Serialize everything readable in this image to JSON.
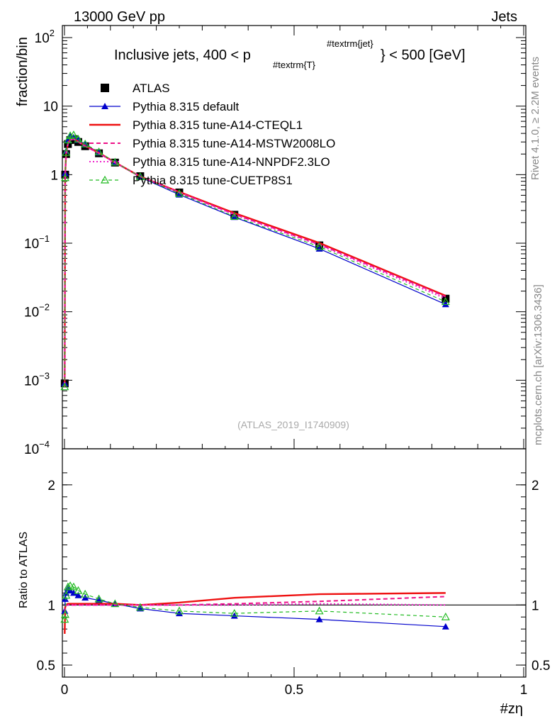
{
  "header": {
    "left": "13000 GeV pp",
    "right": "Jets"
  },
  "side_labels": {
    "rivet": "Rivet 4.1.0, ≥ 2.2M events",
    "mcplots": "mcplots.cern.ch [arXiv:1306.3436]"
  },
  "analysis_id": "(ATLAS_2019_I1740909)",
  "colors": {
    "atlas": "#000000",
    "default": "#0000cc",
    "cteql1": "#ee1111",
    "mstw": "#ee1188",
    "nnpdf": "#ee22cc",
    "cuetp8s1": "#22bb22"
  },
  "chart_data": [
    {
      "type": "line",
      "panel": "main",
      "title_main": "Inclusive jets, 400 < p",
      "title_sub": "#textrm{T}",
      "title_sup": "#textrm{jet}",
      "title_tail": "} < 500 [GeV]",
      "ylabel": "fraction/bin",
      "yscale": "log",
      "ylim": [
        0.0001,
        150
      ],
      "xlim": [
        0,
        1
      ],
      "yticks": [
        {
          "value": 100,
          "mant": "10",
          "exp": "2"
        },
        {
          "value": 10,
          "mant": "10",
          "exp": ""
        },
        {
          "value": 1,
          "mant": "1",
          "exp": ""
        },
        {
          "value": 0.1,
          "mant": "10",
          "exp": "−1"
        },
        {
          "value": 0.01,
          "mant": "10",
          "exp": "−2"
        },
        {
          "value": 0.001,
          "mant": "10",
          "exp": "−3"
        },
        {
          "value": 0.0001,
          "mant": "10",
          "exp": "−4"
        }
      ],
      "x": [
        0.0005,
        0.0015,
        0.0035,
        0.0075,
        0.0125,
        0.02,
        0.03,
        0.045,
        0.075,
        0.11,
        0.165,
        0.25,
        0.37,
        0.555,
        0.83
      ],
      "series": [
        {
          "name": "ATLAS",
          "key": "atlas",
          "style": "marker-square",
          "values": [
            0.0009,
            1.0,
            2.0,
            2.8,
            3.2,
            3.3,
            3.0,
            2.6,
            2.05,
            1.5,
            0.95,
            0.55,
            0.26,
            0.093,
            0.0155
          ]
        },
        {
          "name": "Pythia 8.315 default",
          "key": "default",
          "style": "line-triangle",
          "values": [
            0.0009,
            1.05,
            2.2,
            3.2,
            3.6,
            3.5,
            3.2,
            2.75,
            2.1,
            1.5,
            0.92,
            0.51,
            0.24,
            0.083,
            0.0128
          ]
        },
        {
          "name": "Pythia 8.315 tune-A14-CTEQL1",
          "key": "cteql1",
          "style": "line-thick",
          "values": [
            0.0008,
            1.0,
            2.0,
            2.85,
            3.25,
            3.33,
            3.05,
            2.63,
            2.08,
            1.51,
            0.94,
            0.56,
            0.275,
            0.101,
            0.0171
          ]
        },
        {
          "name": "Pythia 8.315 tune-A14-MSTW2008LO",
          "key": "mstw",
          "style": "line-dashed",
          "values": [
            0.0008,
            0.98,
            2.0,
            2.8,
            3.2,
            3.3,
            3.0,
            2.6,
            2.05,
            1.5,
            0.94,
            0.55,
            0.265,
            0.096,
            0.0166
          ]
        },
        {
          "name": "Pythia 8.315 tune-A14-NNPDF2.3LO",
          "key": "nnpdf",
          "style": "line-dotted",
          "values": [
            0.0008,
            0.97,
            2.0,
            2.8,
            3.2,
            3.3,
            3.0,
            2.6,
            2.05,
            1.5,
            0.94,
            0.55,
            0.26,
            0.094,
            0.0156
          ]
        },
        {
          "name": "Pythia 8.315 tune-CUETP8S1",
          "key": "cuetp8s1",
          "style": "dashed-open-triangle",
          "values": [
            0.0008,
            0.9,
            2.1,
            3.2,
            3.7,
            3.8,
            3.3,
            2.8,
            2.15,
            1.52,
            0.93,
            0.53,
            0.245,
            0.089,
            0.014
          ]
        }
      ]
    },
    {
      "type": "line",
      "panel": "ratio",
      "ylabel": "Ratio to ATLAS",
      "xlabel": "#zη",
      "ylim": [
        0.4,
        2.3
      ],
      "xlim": [
        0,
        1
      ],
      "yticks": [
        {
          "value": 0.5,
          "label": "0.5"
        },
        {
          "value": 1,
          "label": "1"
        },
        {
          "value": 2,
          "label": "2"
        }
      ],
      "xticks": [
        {
          "value": 0,
          "label": "0"
        },
        {
          "value": 0.5,
          "label": "0.5"
        },
        {
          "value": 1,
          "label": "1"
        }
      ],
      "x": [
        0.0005,
        0.0015,
        0.0035,
        0.0075,
        0.0125,
        0.02,
        0.03,
        0.045,
        0.075,
        0.11,
        0.165,
        0.25,
        0.37,
        0.555,
        0.83
      ],
      "series": [
        {
          "name": "Pythia 8.315 default",
          "key": "default",
          "style": "line-triangle",
          "values": [
            0.95,
            1.05,
            1.1,
            1.14,
            1.12,
            1.1,
            1.08,
            1.06,
            1.04,
            1.01,
            0.97,
            0.93,
            0.91,
            0.88,
            0.82
          ]
        },
        {
          "name": "Pythia 8.315 tune-A14-CTEQL1",
          "key": "cteql1",
          "style": "line-thick",
          "values": [
            0.76,
            0.98,
            1.0,
            1.01,
            1.01,
            1.01,
            1.01,
            1.01,
            1.01,
            1.01,
            1.0,
            1.02,
            1.06,
            1.09,
            1.1
          ]
        },
        {
          "name": "Pythia 8.315 tune-A14-MSTW2008LO",
          "key": "mstw",
          "style": "line-dashed",
          "values": [
            0.93,
            0.99,
            1.0,
            1.0,
            1.0,
            1.0,
            1.0,
            1.0,
            1.0,
            1.0,
            1.0,
            1.0,
            1.01,
            1.03,
            1.07
          ]
        },
        {
          "name": "Pythia 8.315 tune-A14-NNPDF2.3LO",
          "key": "nnpdf",
          "style": "line-dotted",
          "values": [
            0.9,
            0.98,
            1.0,
            1.0,
            1.0,
            1.0,
            1.0,
            1.0,
            1.0,
            1.0,
            1.0,
            1.0,
            1.0,
            1.01,
            1.0
          ]
        },
        {
          "name": "Pythia 8.315 tune-CUETP8S1",
          "key": "cuetp8s1",
          "style": "dashed-open-triangle",
          "values": [
            0.88,
            0.92,
            1.08,
            1.15,
            1.16,
            1.15,
            1.12,
            1.09,
            1.05,
            1.01,
            0.98,
            0.95,
            0.93,
            0.95,
            0.9
          ]
        }
      ]
    }
  ]
}
